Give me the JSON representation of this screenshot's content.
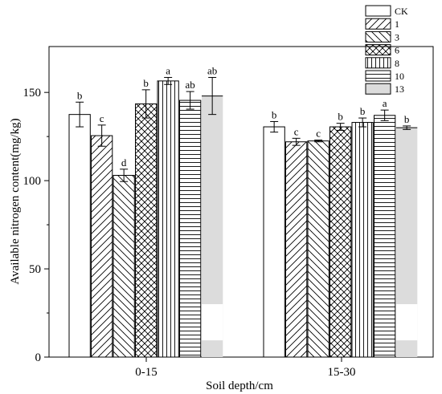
{
  "chart_data": {
    "type": "bar",
    "xlabel": "Soil depth/cm",
    "ylabel": "Available nitrogen content(mg/kg)",
    "categories": [
      "0-15",
      "15-30"
    ],
    "ylim": [
      0,
      176
    ],
    "yticks": [
      0,
      50,
      100,
      150
    ],
    "legend_position": "top-right",
    "series": [
      {
        "name": "CK",
        "pattern": "blank",
        "values": [
          137.5,
          130.5
        ],
        "errors": [
          7,
          3
        ],
        "letters": [
          "b",
          "b"
        ]
      },
      {
        "name": "1",
        "pattern": "forward-diagonal",
        "values": [
          125.5,
          122
        ],
        "errors": [
          6,
          2
        ],
        "letters": [
          "c",
          "c"
        ]
      },
      {
        "name": "3",
        "pattern": "back-diagonal",
        "values": [
          103,
          122.5
        ],
        "errors": [
          3.5,
          0.5
        ],
        "letters": [
          "d",
          "c"
        ]
      },
      {
        "name": "6",
        "pattern": "crosshatch",
        "values": [
          143.5,
          130.5
        ],
        "errors": [
          8,
          2
        ],
        "letters": [
          "b",
          "b"
        ]
      },
      {
        "name": "8",
        "pattern": "vertical-lines",
        "values": [
          156.5,
          133
        ],
        "errors": [
          2,
          2.5
        ],
        "letters": [
          "a",
          "b"
        ]
      },
      {
        "name": "10",
        "pattern": "horizontal-lines",
        "values": [
          145.5,
          137
        ],
        "errors": [
          5,
          3
        ],
        "letters": [
          "ab",
          "a"
        ]
      },
      {
        "name": "13",
        "pattern": "gray-fill",
        "values": [
          148,
          130
        ],
        "errors": [
          10.5,
          1
        ],
        "letters": [
          "ab",
          "b"
        ]
      }
    ]
  }
}
